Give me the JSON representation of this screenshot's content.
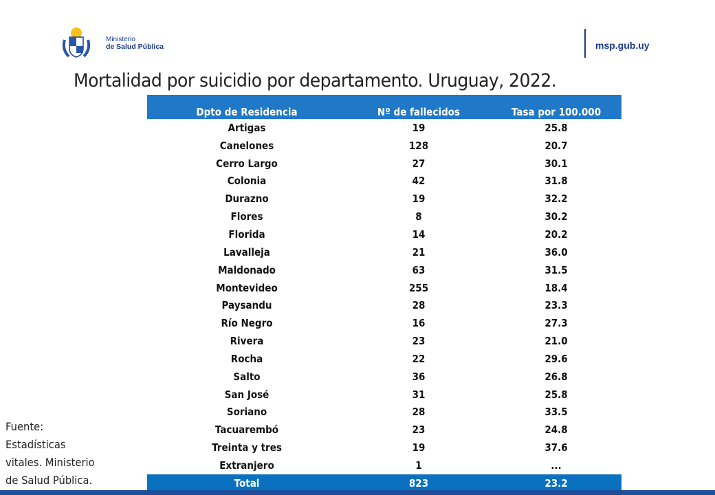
{
  "header": {
    "logo_text_line1": "Ministerio",
    "logo_text_line2": "de Salud Pública",
    "website": "msp.gub.uy",
    "brand_color": "#1a3b8c"
  },
  "title": "Mortalidad por suicidio por departamento. Uruguay, 2022.",
  "table": {
    "header_color": "#1f78c8",
    "columns": [
      "Dpto de Residencia",
      "Nº de fallecidos",
      "Tasa por 100.000"
    ],
    "rows": [
      [
        "Artigas",
        "19",
        "25.8"
      ],
      [
        "Canelones",
        "128",
        "20.7"
      ],
      [
        "Cerro Largo",
        "27",
        "30.1"
      ],
      [
        "Colonia",
        "42",
        "31.8"
      ],
      [
        "Durazno",
        "19",
        "32.2"
      ],
      [
        "Flores",
        "8",
        "30.2"
      ],
      [
        "Florida",
        "14",
        "20.2"
      ],
      [
        "Lavalleja",
        "21",
        "36.0"
      ],
      [
        "Maldonado",
        "63",
        "31.5"
      ],
      [
        "Montevideo",
        "255",
        "18.4"
      ],
      [
        "Paysandu",
        "28",
        "23.3"
      ],
      [
        "Río Negro",
        "16",
        "27.3"
      ],
      [
        "Rivera",
        "23",
        "21.0"
      ],
      [
        "Rocha",
        "22",
        "29.6"
      ],
      [
        "Salto",
        "36",
        "26.8"
      ],
      [
        "San José",
        "31",
        "25.8"
      ],
      [
        "Soriano",
        "28",
        "33.5"
      ],
      [
        "Tacuarembó",
        "23",
        "24.8"
      ],
      [
        "Treinta y tres",
        "19",
        "37.6"
      ],
      [
        "Extranjero",
        "1",
        "..."
      ]
    ],
    "total": [
      "Total",
      "823",
      "23.2"
    ]
  },
  "source": [
    "Fuente:",
    "Estadísticas",
    "vitales. Ministerio",
    "de Salud Pública."
  ]
}
